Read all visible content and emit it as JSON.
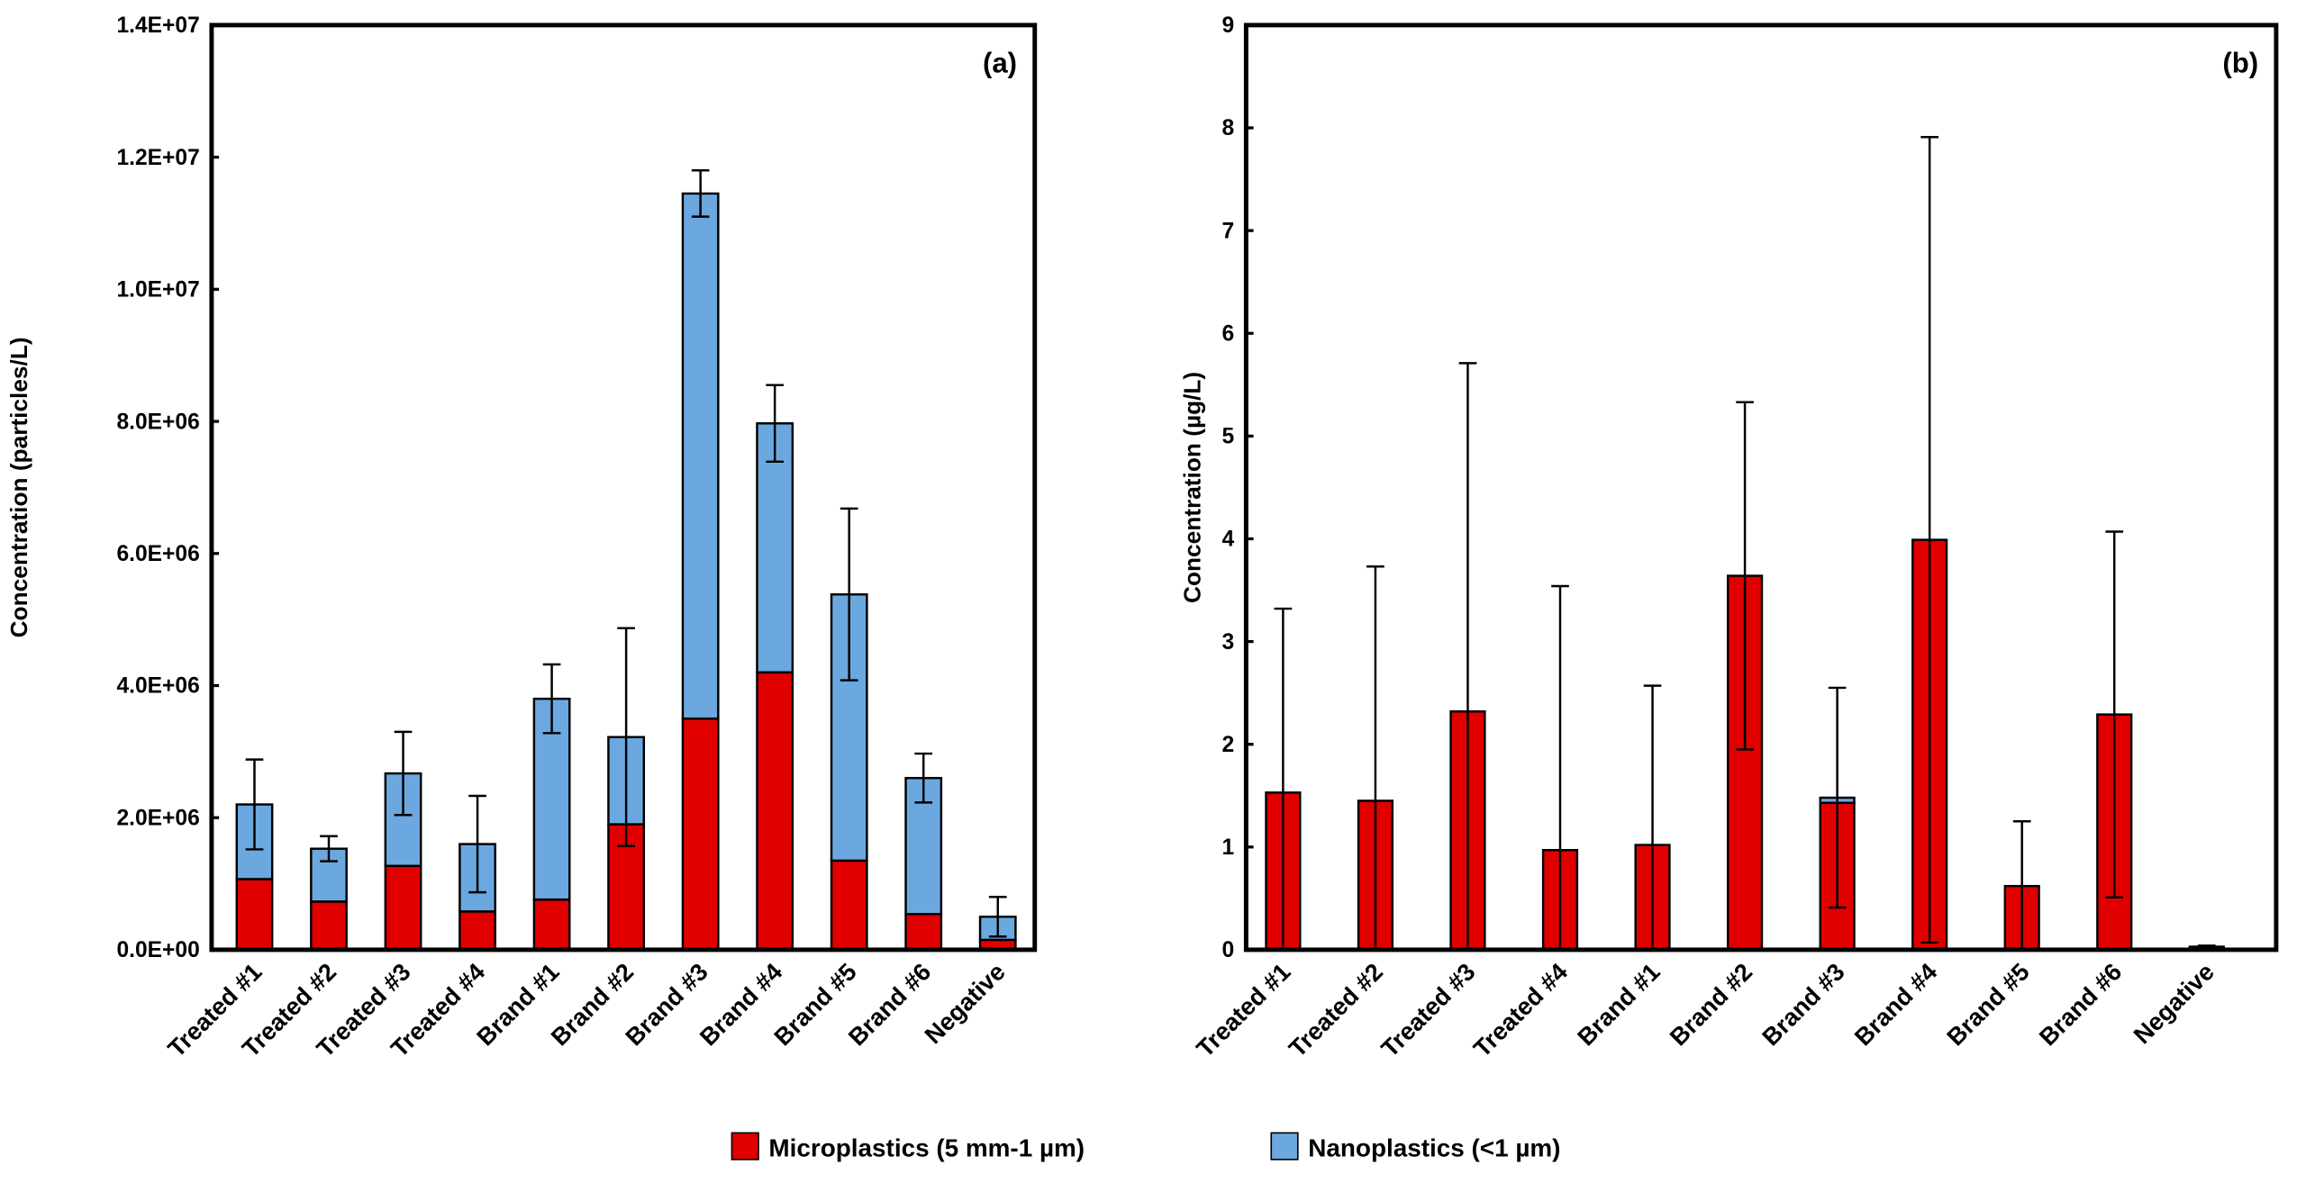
{
  "chart_data": [
    {
      "type": "bar",
      "stacked": true,
      "panel_label": "(a)",
      "ylabel": "Concentration (particles/L)",
      "ylim": [
        0,
        14000000
      ],
      "yticks": [
        "0.0E+00",
        "2.0E+06",
        "4.0E+06",
        "6.0E+06",
        "8.0E+06",
        "1.0E+07",
        "1.2E+07",
        "1.4E+07"
      ],
      "grid": false,
      "categories": [
        "Treated #1",
        "Treated #2",
        "Treated #3",
        "Treated #4",
        "Brand #1",
        "Brand #2",
        "Brand #3",
        "Brand #4",
        "Brand #5",
        "Brand #6",
        "Negative"
      ],
      "series": [
        {
          "name": "Microplastics (5 mm-1 µm)",
          "values": [
            1070000,
            730000,
            1270000,
            580000,
            760000,
            1900000,
            3500000,
            4200000,
            1350000,
            540000,
            150000
          ]
        },
        {
          "name": "Nanoplastics (<1 µm)",
          "values": [
            1130000,
            800000,
            1400000,
            1020000,
            3040000,
            1320000,
            7950000,
            3770000,
            4030000,
            2060000,
            350000
          ]
        }
      ],
      "error_bars": [
        680000,
        190000,
        630000,
        730000,
        520000,
        1650000,
        350000,
        580000,
        1300000,
        370000,
        300000
      ]
    },
    {
      "type": "bar",
      "stacked": true,
      "panel_label": "(b)",
      "ylabel": "Concentration (µg/L)",
      "ylim": [
        0,
        9
      ],
      "yticks": [
        "0",
        "1",
        "2",
        "3",
        "4",
        "5",
        "6",
        "7",
        "8",
        "9"
      ],
      "grid": false,
      "categories": [
        "Treated #1",
        "Treated #2",
        "Treated #3",
        "Treated #4",
        "Brand #1",
        "Brand #2",
        "Brand #3",
        "Brand #4",
        "Brand #5",
        "Brand #6",
        "Negative"
      ],
      "series": [
        {
          "name": "Microplastics (5 mm-1 µm)",
          "values": [
            1.53,
            1.45,
            2.32,
            0.97,
            1.02,
            3.64,
            1.43,
            3.99,
            0.62,
            2.29,
            0.02
          ]
        },
        {
          "name": "Nanoplastics (<1 µm)",
          "values": [
            0,
            0,
            0,
            0,
            0,
            0,
            0.05,
            0,
            0,
            0,
            0.01
          ]
        }
      ],
      "error_bars": [
        1.79,
        2.28,
        3.39,
        2.57,
        1.55,
        1.69,
        1.07,
        3.92,
        0.63,
        1.78,
        0.01
      ]
    }
  ],
  "legend": {
    "position": "bottom",
    "items": [
      {
        "label": "Microplastics (5 mm-1 µm)",
        "color": "#e00000"
      },
      {
        "label": "Nanoplastics (<1 µm)",
        "color": "#6ca8e0"
      }
    ]
  }
}
